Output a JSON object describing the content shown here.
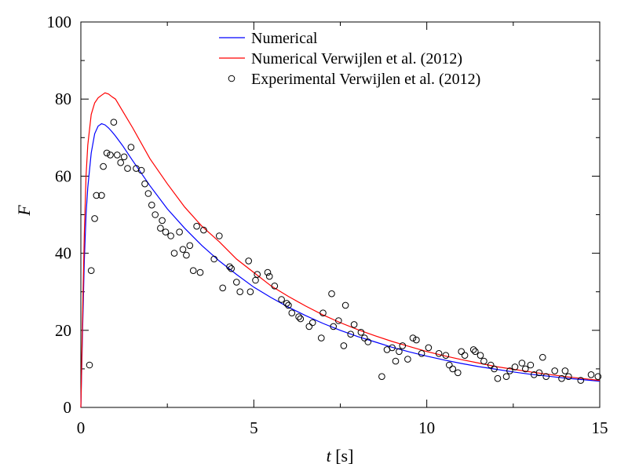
{
  "chart_data": {
    "type": "line",
    "xlabel": "t [s]",
    "xlabel_var": "t",
    "xlabel_unit": " [s]",
    "ylabel": "F",
    "xlim": [
      0,
      15
    ],
    "ylim": [
      0,
      100
    ],
    "xticks": [
      0,
      5,
      10,
      15
    ],
    "yticks": [
      0,
      20,
      40,
      60,
      80,
      100
    ],
    "grid": false,
    "legend_position": "top-center",
    "series": [
      {
        "name": "Numerical",
        "kind": "line",
        "color": "#0000ff",
        "x": [
          0,
          0.05,
          0.1,
          0.15,
          0.2,
          0.3,
          0.4,
          0.5,
          0.6,
          0.7,
          0.8,
          0.9,
          1.0,
          1.2,
          1.5,
          2.0,
          2.5,
          3.0,
          3.5,
          4.0,
          4.5,
          5.0,
          5.5,
          6.0,
          6.5,
          7.0,
          7.5,
          8.0,
          8.5,
          9.0,
          9.5,
          10.0,
          10.5,
          11.0,
          11.5,
          12.0,
          12.5,
          13.0,
          13.5,
          14.0,
          14.5,
          15.0
        ],
        "y": [
          0,
          20,
          38,
          50,
          57,
          66,
          71,
          73,
          73.6,
          73.3,
          72.5,
          71.5,
          70.4,
          68,
          64,
          57.5,
          51.5,
          46.5,
          42,
          38,
          34.5,
          31.2,
          28.5,
          26,
          23.8,
          21.8,
          20,
          18.4,
          17,
          15.6,
          14.4,
          13.3,
          12.3,
          11.4,
          10.6,
          9.9,
          9.2,
          8.6,
          8.1,
          7.6,
          7.2,
          6.8
        ]
      },
      {
        "name": "Numerical Verwijlen et al. (2012)",
        "kind": "line",
        "color": "#ff0000",
        "x": [
          0,
          0.05,
          0.1,
          0.15,
          0.2,
          0.3,
          0.4,
          0.5,
          0.6,
          0.7,
          0.8,
          0.9,
          1.0,
          1.2,
          1.5,
          2.0,
          2.5,
          3.0,
          3.5,
          4.0,
          4.5,
          5.0,
          5.5,
          6.0,
          6.5,
          7.0,
          7.5,
          8.0,
          8.5,
          9.0,
          9.5,
          10.0,
          10.5,
          11.0,
          11.5,
          12.0,
          12.5,
          13.0,
          13.5,
          14.0,
          14.5,
          15.0
        ],
        "y": [
          0,
          24,
          45,
          60,
          68,
          76,
          79,
          80.3,
          81,
          81.6,
          81.3,
          80.6,
          80,
          77,
          72.5,
          64.5,
          58,
          52,
          47,
          43,
          38.5,
          35,
          31.5,
          28.8,
          26.3,
          24,
          22,
          20.2,
          18.6,
          17.1,
          15.8,
          14.5,
          13.4,
          12.4,
          11.5,
          10.6,
          9.9,
          9.2,
          8.6,
          8,
          7.5,
          7
        ]
      },
      {
        "name": "Experimental Verwijlen et al. (2012)",
        "kind": "scatter",
        "color": "#000000",
        "points": [
          [
            0.25,
            11
          ],
          [
            0.3,
            35.5
          ],
          [
            0.4,
            49
          ],
          [
            0.45,
            55
          ],
          [
            0.6,
            55
          ],
          [
            0.65,
            62.5
          ],
          [
            0.75,
            66
          ],
          [
            0.85,
            65.5
          ],
          [
            0.95,
            74
          ],
          [
            1.05,
            65.5
          ],
          [
            1.15,
            63.5
          ],
          [
            1.25,
            65
          ],
          [
            1.35,
            62
          ],
          [
            1.45,
            67.5
          ],
          [
            1.6,
            62
          ],
          [
            1.75,
            61.5
          ],
          [
            1.85,
            58
          ],
          [
            1.95,
            55.5
          ],
          [
            2.05,
            52.5
          ],
          [
            2.15,
            50
          ],
          [
            2.3,
            46.5
          ],
          [
            2.35,
            48.5
          ],
          [
            2.45,
            45.5
          ],
          [
            2.6,
            44.5
          ],
          [
            2.7,
            40
          ],
          [
            2.85,
            45.5
          ],
          [
            2.95,
            41
          ],
          [
            3.05,
            39.5
          ],
          [
            3.15,
            42
          ],
          [
            3.25,
            35.5
          ],
          [
            3.35,
            47
          ],
          [
            3.45,
            35
          ],
          [
            3.55,
            46
          ],
          [
            3.85,
            38.5
          ],
          [
            4.0,
            44.5
          ],
          [
            4.1,
            31
          ],
          [
            4.3,
            36.5
          ],
          [
            4.35,
            36
          ],
          [
            4.5,
            32.5
          ],
          [
            4.6,
            30
          ],
          [
            4.85,
            38
          ],
          [
            4.9,
            30
          ],
          [
            5.05,
            33
          ],
          [
            5.1,
            34.5
          ],
          [
            5.4,
            35
          ],
          [
            5.45,
            34
          ],
          [
            5.6,
            31.5
          ],
          [
            5.8,
            28
          ],
          [
            5.95,
            27
          ],
          [
            6.0,
            26.5
          ],
          [
            6.1,
            24.5
          ],
          [
            6.3,
            23.5
          ],
          [
            6.35,
            23
          ],
          [
            6.6,
            21
          ],
          [
            6.7,
            22
          ],
          [
            6.95,
            18
          ],
          [
            7.0,
            24.5
          ],
          [
            7.25,
            29.5
          ],
          [
            7.3,
            21
          ],
          [
            7.45,
            22.5
          ],
          [
            7.6,
            16
          ],
          [
            7.65,
            26.5
          ],
          [
            7.8,
            19
          ],
          [
            7.9,
            21.5
          ],
          [
            8.1,
            19.5
          ],
          [
            8.2,
            18
          ],
          [
            8.3,
            17
          ],
          [
            8.7,
            8
          ],
          [
            8.85,
            15
          ],
          [
            9.0,
            15.5
          ],
          [
            9.1,
            12
          ],
          [
            9.2,
            14.5
          ],
          [
            9.3,
            16
          ],
          [
            9.45,
            12.5
          ],
          [
            9.6,
            18
          ],
          [
            9.7,
            17.5
          ],
          [
            9.85,
            14
          ],
          [
            10.05,
            15.5
          ],
          [
            10.35,
            14
          ],
          [
            10.55,
            13.5
          ],
          [
            10.65,
            11
          ],
          [
            10.75,
            10
          ],
          [
            10.9,
            9
          ],
          [
            11.0,
            14.5
          ],
          [
            11.1,
            13.5
          ],
          [
            11.35,
            15
          ],
          [
            11.4,
            14.5
          ],
          [
            11.55,
            13.5
          ],
          [
            11.65,
            12
          ],
          [
            11.85,
            11
          ],
          [
            11.95,
            10
          ],
          [
            12.05,
            7.5
          ],
          [
            12.3,
            8
          ],
          [
            12.4,
            9.5
          ],
          [
            12.55,
            10.5
          ],
          [
            12.75,
            11.5
          ],
          [
            12.85,
            10
          ],
          [
            13.0,
            11
          ],
          [
            13.1,
            8.5
          ],
          [
            13.25,
            9
          ],
          [
            13.35,
            13
          ],
          [
            13.45,
            8
          ],
          [
            13.7,
            9.5
          ],
          [
            13.9,
            7.5
          ],
          [
            14.0,
            9.5
          ],
          [
            14.1,
            8
          ],
          [
            14.45,
            7
          ],
          [
            14.75,
            8.5
          ],
          [
            14.95,
            8
          ]
        ]
      }
    ]
  }
}
